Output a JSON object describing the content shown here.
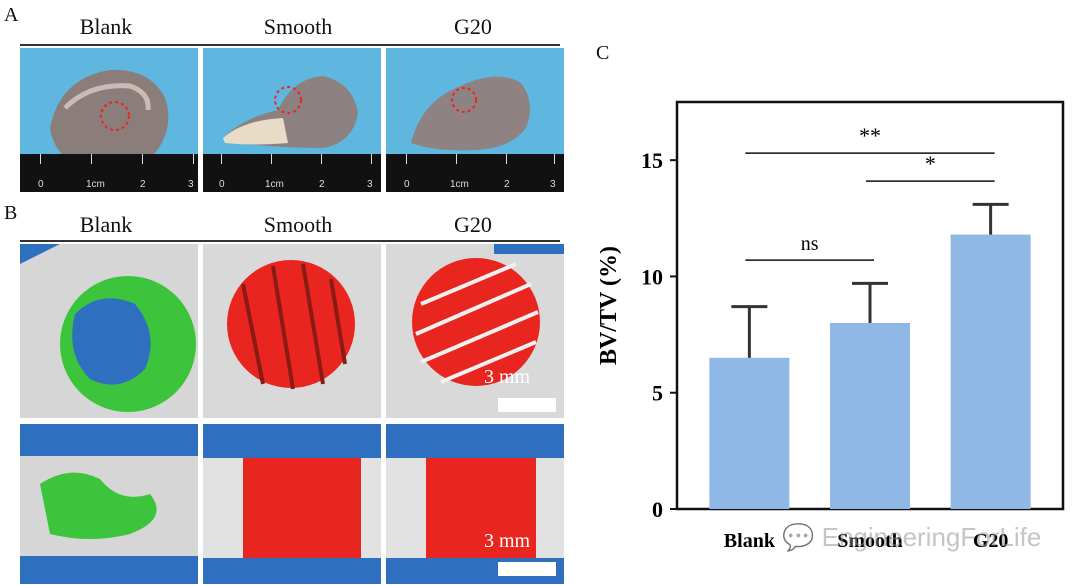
{
  "panels": {
    "a": "A",
    "b": "B",
    "c": "C"
  },
  "columns": [
    "Blank",
    "Smooth",
    "G20"
  ],
  "ruler_numbers": [
    "0",
    "1cm",
    "2",
    "3"
  ],
  "scale_label": "3 mm",
  "watermark": "EngineeringForLife",
  "colors": {
    "bar": "#8fb8e6",
    "error": "#333333",
    "photo_bg": "#5fb6df",
    "new_bone": "#3cc43c",
    "scaffold": "#e8251f",
    "defect_blue": "#2f6fbf"
  },
  "chart_data": {
    "type": "bar",
    "categories": [
      "Blank",
      "Smooth",
      "G20"
    ],
    "values": [
      6.5,
      8.0,
      11.8
    ],
    "errors": [
      2.2,
      1.7,
      1.3
    ],
    "ylabel": "BV/TV  (%)",
    "xlabel": "",
    "ylim": [
      0,
      17.5
    ],
    "yticks": [
      0,
      5,
      10,
      15
    ],
    "significance": [
      {
        "from": 0,
        "to": 1,
        "label": "ns",
        "y": 10.7
      },
      {
        "from": 1,
        "to": 2,
        "label": "*",
        "y": 14.1
      },
      {
        "from": 0,
        "to": 2,
        "label": "**",
        "y": 15.3
      }
    ]
  }
}
